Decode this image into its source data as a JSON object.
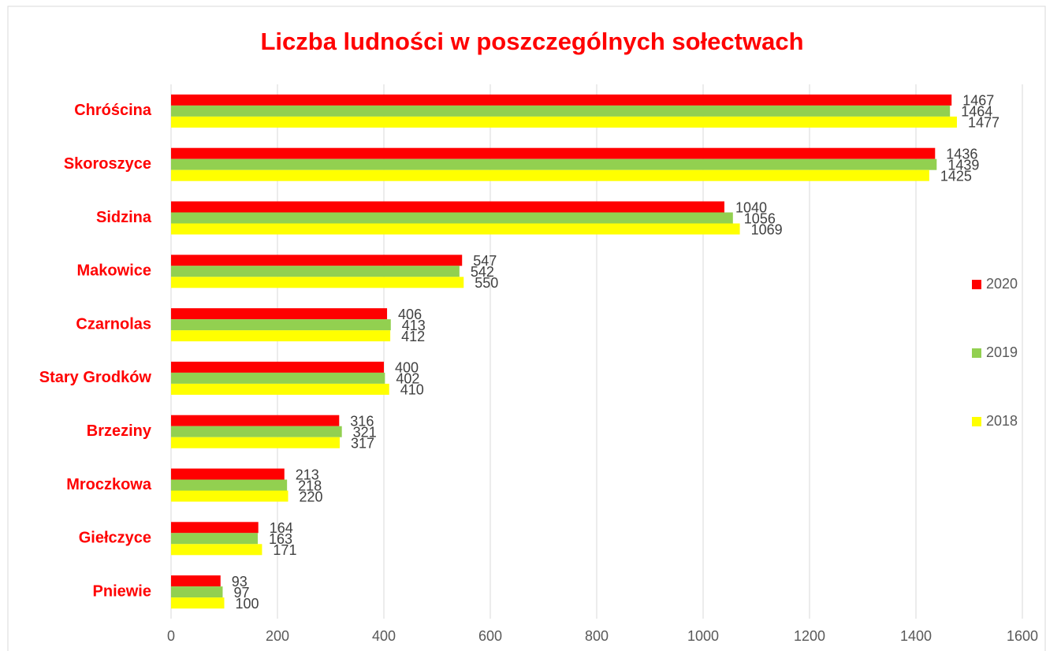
{
  "chart_data": {
    "type": "bar",
    "orientation": "horizontal",
    "title": "Liczba ludności w poszczególnych sołectwach",
    "categories": [
      "Chróścina",
      "Skoroszyce",
      "Sidzina",
      "Makowice",
      "Czarnolas",
      "Stary Grodków",
      "Brzeziny",
      "Mroczkowa",
      "Giełczyce",
      "Pniewie"
    ],
    "series": [
      {
        "name": "2020",
        "color": "#ff0000",
        "values": [
          1467,
          1436,
          1040,
          547,
          406,
          400,
          316,
          213,
          164,
          93
        ]
      },
      {
        "name": "2019",
        "color": "#92d050",
        "values": [
          1464,
          1439,
          1056,
          542,
          413,
          402,
          321,
          218,
          163,
          97
        ]
      },
      {
        "name": "2018",
        "color": "#ffff00",
        "values": [
          1477,
          1425,
          1069,
          550,
          412,
          410,
          317,
          220,
          171,
          100
        ]
      }
    ],
    "xlim": [
      0,
      1600
    ],
    "xticks": [
      0,
      200,
      400,
      600,
      800,
      1000,
      1200,
      1400,
      1600
    ],
    "grid": true,
    "legend": "right",
    "data_labels": true
  }
}
